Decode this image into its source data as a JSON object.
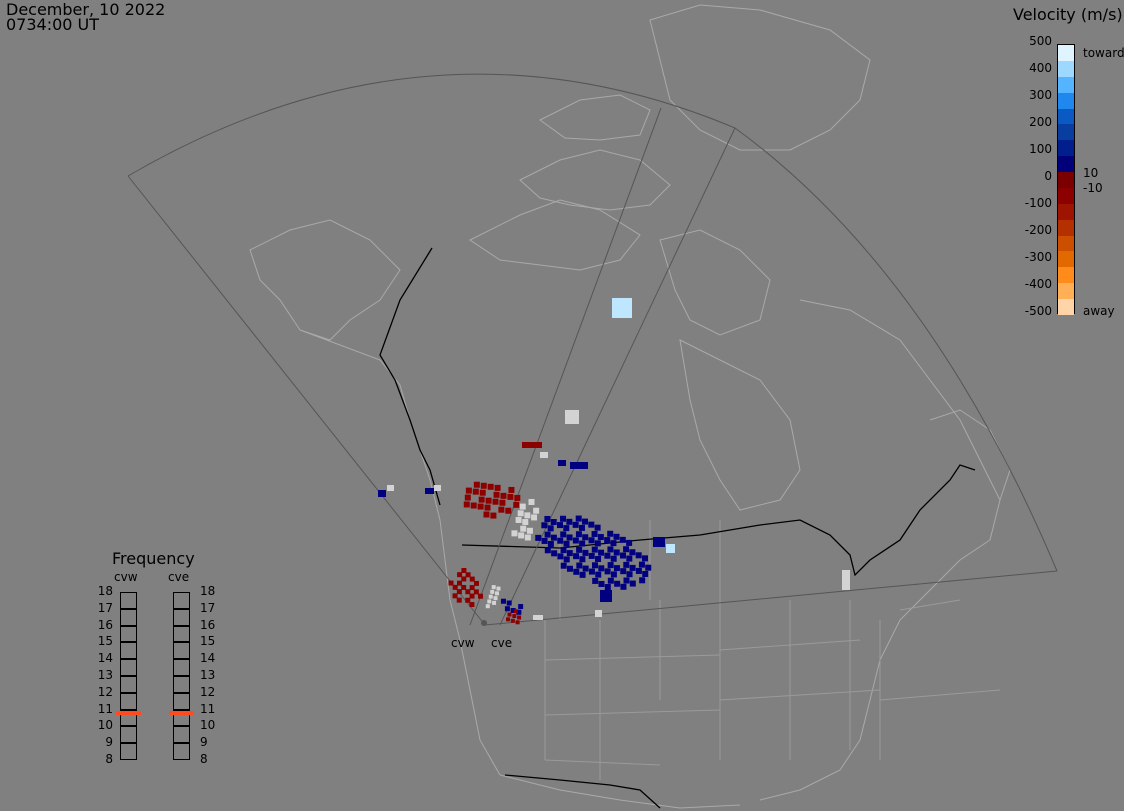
{
  "header": {
    "date": "December, 10 2022",
    "time": "0734:00 UT"
  },
  "legend": {
    "title": "Velocity (m/s)",
    "ticks": [
      "500",
      "400",
      "300",
      "200",
      "100",
      "0",
      "-100",
      "-200",
      "-300",
      "-400",
      "-500"
    ],
    "labels": {
      "toward": "toward",
      "away": "away",
      "pos_thresh": "10",
      "neg_thresh": "-10"
    },
    "colors": [
      "#e0f4ff",
      "#9fd8ff",
      "#55b4ff",
      "#1e88ef",
      "#0b5ac4",
      "#073ea0",
      "#001e8c",
      "#000078",
      "#7a0000",
      "#8c0000",
      "#9e1400",
      "#b43000",
      "#cc4f00",
      "#e26800",
      "#ff8c1a",
      "#ffaf55",
      "#ffd5a8"
    ]
  },
  "frequency": {
    "title": "Frequency",
    "radars": [
      "cvw",
      "cve"
    ],
    "scale": [
      "18",
      "17",
      "16",
      "15",
      "14",
      "13",
      "12",
      "11",
      "10",
      "9",
      "8"
    ],
    "values": {
      "cvw": 10.8,
      "cve": 10.8
    },
    "marker_color": "#ff4b1e"
  },
  "map": {
    "radar_labels": [
      "cvw",
      "cve"
    ],
    "colors": {
      "red": "#8c0000",
      "blue": "#000080",
      "gray": "#d3d3d3",
      "light": "#bfe6ff"
    }
  }
}
